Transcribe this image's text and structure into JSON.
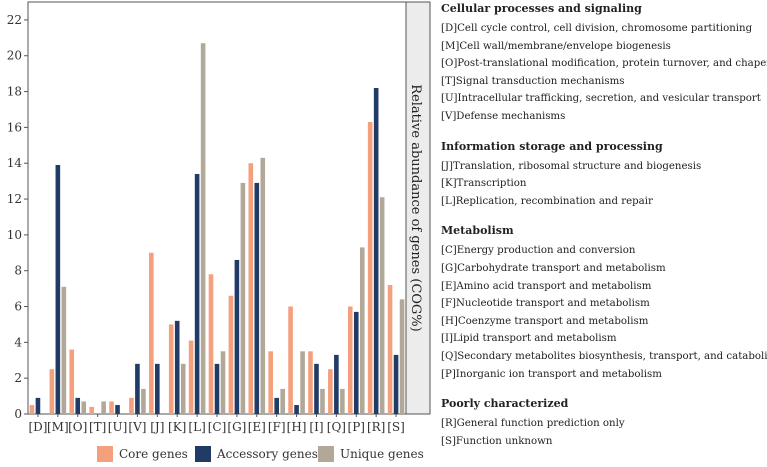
{
  "chart_data": {
    "type": "bar",
    "ylabel": "Relative abundance of genes (COG%)",
    "ylim": [
      0,
      23
    ],
    "yticks": [
      0,
      2,
      4,
      6,
      8,
      10,
      12,
      14,
      16,
      18,
      20,
      22
    ],
    "categories": [
      "[D]",
      "[M]",
      "[O]",
      "[T]",
      "[U]",
      "[V]",
      "[J]",
      "[K]",
      "[L]",
      "[C]",
      "[G]",
      "[E]",
      "[F]",
      "[H]",
      "[I]",
      "[Q]",
      "[P]",
      "[R]",
      "[S]"
    ],
    "series": [
      {
        "name": "Core genes",
        "color": "#f4a07c",
        "values": [
          0.5,
          2.5,
          3.6,
          0.4,
          0.7,
          0.9,
          9.0,
          5.0,
          4.1,
          7.8,
          6.6,
          14.0,
          3.5,
          6.0,
          3.5,
          2.5,
          6.0,
          16.3,
          7.2
        ]
      },
      {
        "name": "Accessory genes",
        "color": "#1f3b66",
        "values": [
          0.9,
          13.9,
          0.9,
          0.0,
          0.5,
          2.8,
          2.8,
          5.2,
          13.4,
          2.8,
          8.6,
          12.9,
          0.9,
          0.5,
          2.8,
          3.3,
          5.7,
          18.2,
          3.3
        ]
      },
      {
        "name": "Unique genes",
        "color": "#b2a898",
        "values": [
          0.0,
          7.1,
          0.7,
          0.7,
          0.0,
          1.4,
          0.0,
          2.8,
          20.7,
          3.5,
          12.9,
          14.3,
          1.4,
          3.5,
          1.4,
          1.4,
          9.3,
          12.1,
          6.4
        ]
      }
    ],
    "legend_position": "bottom"
  },
  "cog_legend": [
    {
      "title": "Cellular processes and signaling",
      "items": [
        "[D]Cell cycle control, cell division, chromosome partitioning",
        "[M]Cell wall/membrane/envelope biogenesis",
        "[O]Post-translational modification, protein turnover, and chaperones",
        "[T]Signal transduction mechanisms",
        "[U]Intracellular trafficking, secretion, and vesicular transport",
        "[V]Defense mechanisms"
      ]
    },
    {
      "title": "Information storage and processing",
      "items": [
        "[J]Translation, ribosomal structure and biogenesis",
        "[K]Transcription",
        "[L]Replication, recombination and repair"
      ]
    },
    {
      "title": "Metabolism",
      "items": [
        "[C]Energy production and conversion",
        "[G]Carbohydrate transport and metabolism",
        "[E]Amino acid transport and metabolism",
        "[F]Nucleotide transport and metabolism",
        "[H]Coenzyme transport and metabolism",
        "[I]Lipid transport and metabolism",
        "[Q]Secondary metabolites biosynthesis, transport, and catabolism",
        "[P]Inorganic ion transport and metabolism"
      ]
    },
    {
      "title": "Poorly characterized",
      "items": [
        "[R]General function prediction only",
        "[S]Function unknown"
      ]
    }
  ]
}
